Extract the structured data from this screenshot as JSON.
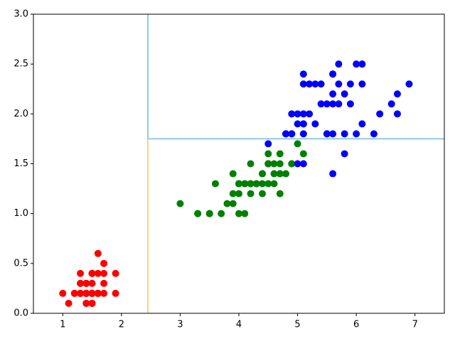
{
  "chart_data": {
    "type": "scatter",
    "xlim": [
      0.5,
      7.5
    ],
    "ylim": [
      0,
      3
    ],
    "xticks": [
      1,
      2,
      3,
      4,
      5,
      6,
      7
    ],
    "yticks": [
      {
        "value": 0,
        "label": "0.0"
      },
      0.5,
      {
        "value": 1,
        "label": "1.0"
      },
      1.5,
      {
        "value": 2,
        "label": "2.0"
      },
      2.5,
      {
        "value": 3,
        "label": "3.0"
      }
    ],
    "grid": false,
    "series": [
      {
        "color": "#ff0000",
        "x": [
          1.4,
          1.4,
          1.3,
          1.5,
          1.4,
          1.7,
          1.4,
          1.5,
          1.4,
          1.5,
          1.5,
          1.6,
          1.4,
          1.1,
          1.2,
          1.5,
          1.3,
          1.4,
          1.7,
          1.5,
          1.7,
          1.5,
          1.0,
          1.7,
          1.9,
          1.6,
          1.6,
          1.5,
          1.4,
          1.6,
          1.6,
          1.5,
          1.5,
          1.4,
          1.5,
          1.2,
          1.3,
          1.4,
          1.3,
          1.5,
          1.3,
          1.3,
          1.3,
          1.6,
          1.9,
          1.4,
          1.6,
          1.4,
          1.5,
          1.4
        ],
        "values": [
          0.2,
          0.2,
          0.2,
          0.2,
          0.2,
          0.4,
          0.3,
          0.2,
          0.2,
          0.1,
          0.2,
          0.2,
          0.1,
          0.1,
          0.2,
          0.4,
          0.4,
          0.3,
          0.3,
          0.3,
          0.2,
          0.4,
          0.2,
          0.5,
          0.2,
          0.2,
          0.4,
          0.2,
          0.2,
          0.2,
          0.2,
          0.4,
          0.1,
          0.2,
          0.2,
          0.2,
          0.2,
          0.1,
          0.2,
          0.2,
          0.3,
          0.3,
          0.2,
          0.6,
          0.4,
          0.3,
          0.2,
          0.2,
          0.2,
          0.2
        ]
      },
      {
        "color": "#008000",
        "x": [
          4.7,
          4.5,
          4.9,
          4.0,
          4.6,
          4.5,
          4.7,
          3.3,
          4.6,
          3.9,
          3.5,
          4.2,
          4.0,
          4.7,
          3.6,
          4.4,
          4.5,
          4.1,
          4.5,
          3.9,
          4.8,
          4.0,
          4.9,
          4.7,
          4.3,
          4.4,
          4.8,
          5.0,
          4.5,
          3.5,
          3.8,
          3.7,
          3.9,
          5.1,
          4.5,
          4.5,
          4.7,
          4.4,
          4.1,
          4.0,
          4.4,
          4.6,
          4.0,
          3.3,
          4.2,
          4.2,
          4.2,
          4.3,
          3.0,
          4.1
        ],
        "values": [
          1.4,
          1.5,
          1.5,
          1.3,
          1.5,
          1.3,
          1.6,
          1.0,
          1.3,
          1.4,
          1.0,
          1.5,
          1.0,
          1.4,
          1.3,
          1.4,
          1.5,
          1.0,
          1.5,
          1.1,
          1.8,
          1.3,
          1.5,
          1.2,
          1.3,
          1.4,
          1.4,
          1.7,
          1.5,
          1.0,
          1.1,
          1.0,
          1.2,
          1.6,
          1.5,
          1.6,
          1.5,
          1.3,
          1.3,
          1.3,
          1.2,
          1.4,
          1.2,
          1.0,
          1.3,
          1.2,
          1.3,
          1.3,
          1.1,
          1.3
        ]
      },
      {
        "color": "#0000ff",
        "x": [
          6.0,
          5.1,
          5.9,
          5.6,
          5.8,
          6.6,
          4.5,
          6.3,
          5.8,
          6.1,
          5.1,
          5.3,
          5.5,
          5.0,
          5.1,
          5.3,
          5.5,
          6.7,
          6.9,
          5.0,
          5.7,
          4.9,
          6.7,
          4.9,
          5.7,
          6.0,
          4.8,
          4.9,
          5.6,
          5.8,
          6.1,
          6.4,
          5.6,
          5.1,
          5.6,
          6.1,
          5.6,
          5.5,
          4.8,
          5.4,
          5.6,
          5.1,
          5.1,
          5.9,
          5.7,
          5.2,
          5.0,
          5.2,
          5.4,
          5.1
        ],
        "values": [
          2.5,
          1.9,
          2.1,
          1.8,
          2.2,
          2.1,
          1.7,
          1.8,
          1.8,
          2.5,
          2.0,
          1.9,
          2.1,
          2.0,
          2.4,
          2.3,
          1.8,
          2.2,
          2.3,
          1.5,
          2.3,
          2.0,
          2.0,
          1.8,
          2.1,
          1.8,
          1.8,
          1.8,
          2.1,
          1.6,
          1.9,
          2.0,
          2.2,
          1.5,
          1.4,
          2.3,
          2.4,
          1.8,
          1.8,
          2.1,
          2.4,
          2.3,
          1.9,
          2.3,
          2.5,
          2.3,
          1.9,
          2.0,
          2.3,
          1.8
        ]
      }
    ],
    "lines": [
      {
        "color": "#ffa500",
        "linewidth": 1,
        "x": [
          2.45,
          2.45
        ],
        "values": [
          0,
          1.75
        ]
      },
      {
        "color": "#8ecae6",
        "linewidth": 2,
        "x": [
          2.45,
          2.45
        ],
        "values": [
          1.75,
          3
        ]
      },
      {
        "color": "#8ecae6",
        "linewidth": 2,
        "x": [
          2.45,
          7.5
        ],
        "values": [
          1.75,
          1.75
        ]
      }
    ]
  }
}
